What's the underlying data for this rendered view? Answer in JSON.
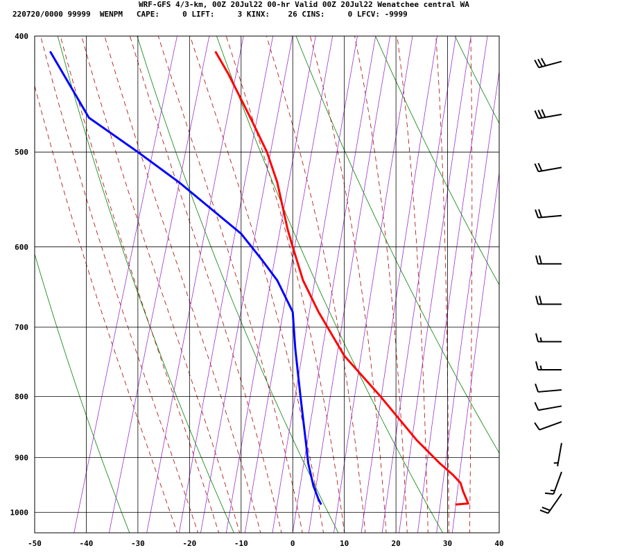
{
  "header": {
    "title": "WRF-GFS 4/3-km, 00Z 20Jul22 00-hr Valid 00Z 20Jul22 Wenatchee central WA",
    "date_code": "220720/0000",
    "station_id": "99999",
    "station": "WENPM",
    "indices": [
      {
        "label": "CAPE:",
        "value": "0"
      },
      {
        "label": "LIFT:",
        "value": "3"
      },
      {
        "label": "KINX:",
        "value": "26"
      },
      {
        "label": "CINS:",
        "value": "0"
      },
      {
        "label": "LFCV:",
        "value": "-9999"
      }
    ]
  },
  "chart_data": {
    "type": "line",
    "title": "WRF-GFS 4/3-km, 00Z 20Jul22 00-hr Valid 00Z 20Jul22 Wenatchee central WA",
    "x_scale": "skewed temperature (deg C)",
    "y_scale": "log pressure (hPa)",
    "xlim": [
      -50,
      40
    ],
    "ylim": [
      1040,
      400
    ],
    "x_ticks": [
      -50,
      -40,
      -30,
      -20,
      -10,
      0,
      10,
      20,
      30,
      40
    ],
    "y_ticks": [
      400,
      500,
      600,
      700,
      800,
      900,
      1000
    ],
    "grid": true,
    "background_lines": {
      "dry_adiabats_color": "#008000",
      "moist_adiabats_color": "#aa0000",
      "mixing_ratio_color": "#9933cc"
    },
    "series": [
      {
        "role": "temperature",
        "color": "#ff0000",
        "points": [
          {
            "p": 985,
            "x": 31.5
          },
          {
            "p": 983,
            "x": 34
          },
          {
            "p": 960,
            "x": 33
          },
          {
            "p": 945,
            "x": 32.5
          },
          {
            "p": 930,
            "x": 31
          },
          {
            "p": 910,
            "x": 28.5
          },
          {
            "p": 870,
            "x": 24
          },
          {
            "p": 800,
            "x": 17
          },
          {
            "p": 740,
            "x": 10
          },
          {
            "p": 680,
            "x": 5
          },
          {
            "p": 640,
            "x": 2
          },
          {
            "p": 600,
            "x": 0
          },
          {
            "p": 580,
            "x": -1
          },
          {
            "p": 530,
            "x": -3
          },
          {
            "p": 500,
            "x": -5
          },
          {
            "p": 470,
            "x": -8
          },
          {
            "p": 430,
            "x": -12.5
          },
          {
            "p": 412,
            "x": -15
          }
        ]
      },
      {
        "role": "dewpoint",
        "color": "#0000ff",
        "points": [
          {
            "p": 985,
            "x": 5.5
          },
          {
            "p": 975,
            "x": 5
          },
          {
            "p": 950,
            "x": 4
          },
          {
            "p": 910,
            "x": 3
          },
          {
            "p": 870,
            "x": 2.5
          },
          {
            "p": 800,
            "x": 1.5
          },
          {
            "p": 730,
            "x": 0.5
          },
          {
            "p": 680,
            "x": 0
          },
          {
            "p": 640,
            "x": -3
          },
          {
            "p": 615,
            "x": -6
          },
          {
            "p": 585,
            "x": -10
          },
          {
            "p": 530,
            "x": -22
          },
          {
            "p": 500,
            "x": -30
          },
          {
            "p": 468,
            "x": -39.5
          },
          {
            "p": 412,
            "x": -47
          }
        ]
      }
    ],
    "wind_barbs": [
      {
        "p": 420,
        "speed_kt": 30,
        "dir_deg": 255
      },
      {
        "p": 465,
        "speed_kt": 30,
        "dir_deg": 260
      },
      {
        "p": 515,
        "speed_kt": 20,
        "dir_deg": 260
      },
      {
        "p": 565,
        "speed_kt": 20,
        "dir_deg": 265
      },
      {
        "p": 620,
        "speed_kt": 20,
        "dir_deg": 270
      },
      {
        "p": 670,
        "speed_kt": 20,
        "dir_deg": 270
      },
      {
        "p": 720,
        "speed_kt": 15,
        "dir_deg": 270
      },
      {
        "p": 760,
        "speed_kt": 15,
        "dir_deg": 270
      },
      {
        "p": 790,
        "speed_kt": 10,
        "dir_deg": 265
      },
      {
        "p": 815,
        "speed_kt": 10,
        "dir_deg": 260
      },
      {
        "p": 840,
        "speed_kt": 10,
        "dir_deg": 250
      },
      {
        "p": 875,
        "speed_kt": 5,
        "dir_deg": 190
      },
      {
        "p": 925,
        "speed_kt": 15,
        "dir_deg": 200
      },
      {
        "p": 965,
        "speed_kt": 20,
        "dir_deg": 215
      }
    ]
  }
}
